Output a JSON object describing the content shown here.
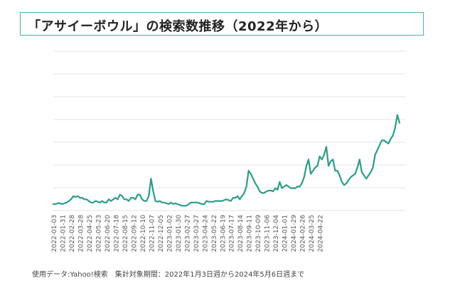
{
  "title": "「アサイーボウル」の検索数推移（2022年から）",
  "footer": "使用データ:Yahoo!検索　集計対象期間：2022年1月3日週から2024年5月6日週まで",
  "colors": {
    "line": "#2a9d8a",
    "border": "#3fb8a6",
    "grid": "#e3e3e3",
    "tick": "#555555"
  },
  "chart_data": {
    "type": "line",
    "title": "「アサイーボウル」の検索数推移（2022年から）",
    "xlabel": "",
    "ylabel": "",
    "grid": true,
    "ylim": [
      0,
      100
    ],
    "x_tick_labels": [
      "2022-01-03",
      "2022-01-31",
      "2022-02-28",
      "2022-03-28",
      "2022-04-25",
      "2022-05-23",
      "2022-06-20",
      "2022-07-18",
      "2022-08-15",
      "2022-09-12",
      "2022-10-10",
      "2022-11-07",
      "2022-12-05",
      "2023-01-02",
      "2023-01-30",
      "2023-02-27",
      "2023-03-27",
      "2023-04-24",
      "2023-05-22",
      "2023-06-19",
      "2023-07-17",
      "2023-08-14",
      "2023-09-11",
      "2023-10-09",
      "2023-11-06",
      "2023-12-04",
      "2024-01-01",
      "2024-01-29",
      "2024-02-26",
      "2024-03-25",
      "2024-04-22"
    ],
    "series": [
      {
        "values": [
          4,
          4,
          4.5,
          4.5,
          4,
          4.5,
          5,
          6,
          7,
          9,
          8.5,
          9,
          8,
          8,
          7,
          7,
          6,
          5,
          5,
          6,
          5.5,
          5,
          6,
          5,
          5,
          7,
          6,
          7,
          8,
          7,
          10,
          9,
          7,
          7,
          6,
          8,
          8,
          7,
          10,
          10,
          7,
          6,
          6,
          9,
          20,
          12,
          6,
          5.5,
          6,
          5,
          5,
          4.5,
          4,
          5,
          4,
          4.5,
          4,
          3.5,
          3,
          3,
          3,
          4,
          5,
          5,
          5,
          5,
          4.5,
          4,
          4,
          6,
          5.5,
          5.5,
          5.5,
          6,
          6,
          6,
          6,
          6.5,
          7,
          6.5,
          6,
          8,
          8,
          9,
          7,
          9,
          11,
          15,
          25,
          23,
          20,
          17,
          15,
          12,
          11,
          11,
          12,
          12.5,
          12.5,
          12,
          14,
          13,
          18,
          14,
          15,
          16,
          15,
          14,
          14,
          14,
          15,
          15,
          17,
          21,
          28,
          32,
          23,
          25,
          27,
          28,
          34,
          32,
          35,
          40,
          28,
          31,
          32,
          25,
          25,
          22,
          18,
          16,
          17,
          19,
          21,
          22,
          23,
          27,
          32,
          24,
          22,
          20,
          22,
          24,
          27,
          35,
          38,
          41,
          44,
          44,
          43,
          42,
          45,
          47,
          52,
          60,
          55
        ]
      }
    ]
  }
}
